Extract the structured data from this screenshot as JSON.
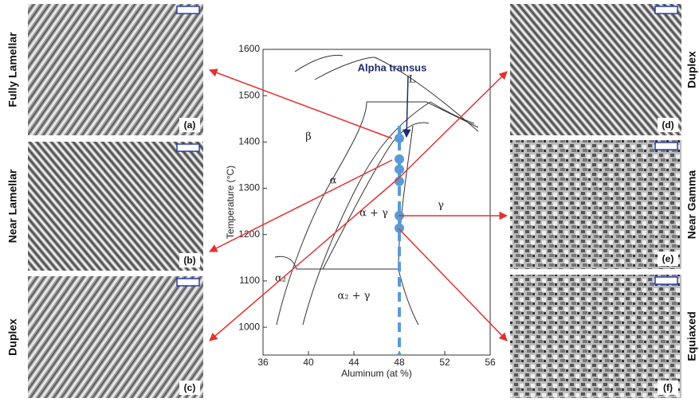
{
  "panels": [
    {
      "label": "Fully Lamellar",
      "letter": "(a)"
    },
    {
      "label": "Near Lamellar",
      "letter": "(b)"
    },
    {
      "label": "Duplex",
      "letter": "(c)"
    },
    {
      "label": "Duplex",
      "letter": "(d)"
    },
    {
      "label": "Near Gamma",
      "letter": "(e)"
    },
    {
      "label": "Equiaxed",
      "letter": "(f)"
    }
  ],
  "diagram": {
    "x_label": "Aluminum (at %)",
    "y_label": "Temperature (°C)",
    "xlim": [
      36,
      56
    ],
    "ylim": [
      940,
      1600
    ],
    "xticks": [
      36,
      40,
      44,
      48,
      52,
      56
    ],
    "yticks": [
      1000,
      1100,
      1200,
      1300,
      1400,
      1500,
      1600
    ],
    "annotation": "Alpha transus",
    "regions": [
      "L",
      "β",
      "α",
      "α + γ",
      "γ",
      "α₂",
      "α₂ + γ"
    ],
    "points": {
      "x": 48,
      "temperatures": [
        1408,
        1363,
        1341,
        1315,
        1241,
        1214
      ]
    }
  }
}
